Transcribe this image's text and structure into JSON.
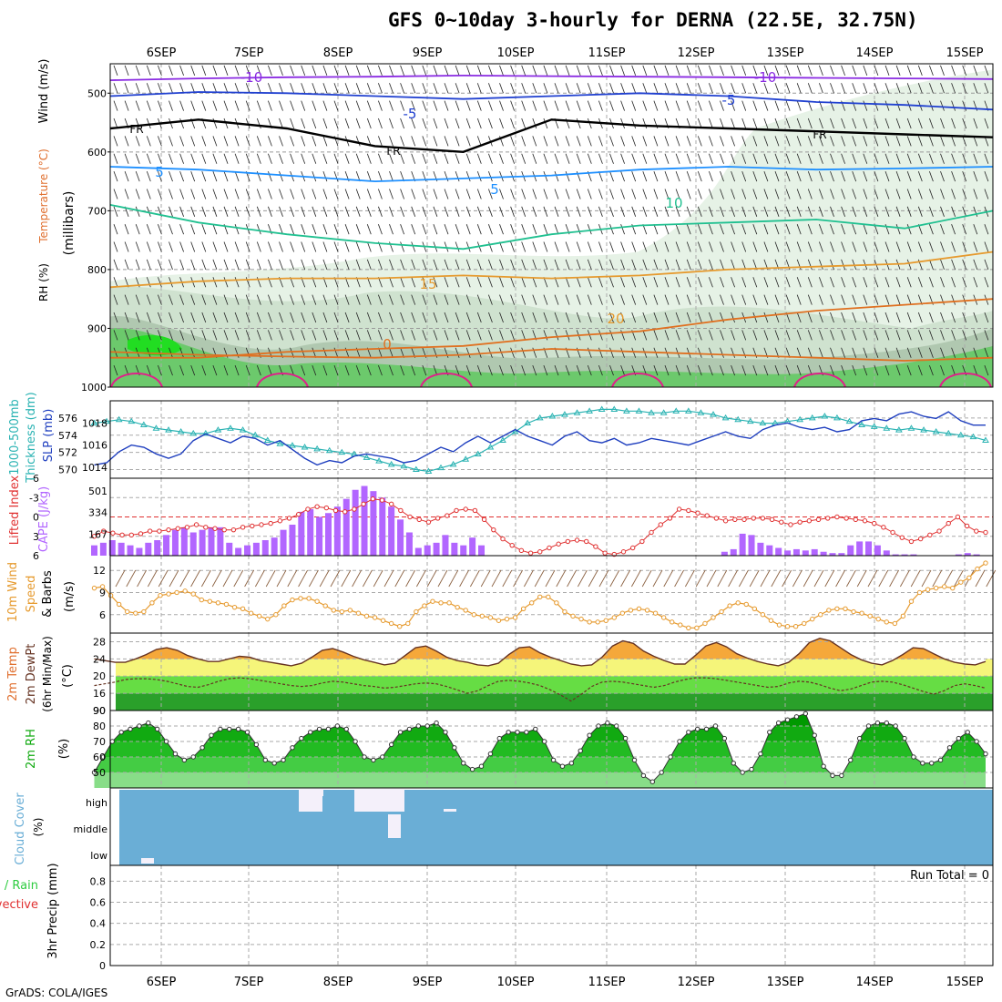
{
  "title": "GFS 0~10day 3-hourly for DERNA (22.5E, 32.75N)",
  "credit": "GrADS: COLA/IGES",
  "dates": [
    "6SEP",
    "7SEP",
    "8SEP",
    "9SEP",
    "10SEP",
    "11SEP",
    "12SEP",
    "13SEP",
    "14SEP",
    "15SEP"
  ],
  "colors": {
    "rh": "#2ecc40",
    "temp": "#e7a23b",
    "wind": "#000000",
    "cloud": "#6aaed6",
    "cape": "#b266ff",
    "li": "#e03030",
    "slp": "#1f3fbf",
    "thick": "#2bb3b3",
    "wspd": "#e69a2e"
  },
  "panel_labels": {
    "upper": [
      "RH (%)",
      "Temperature (°C)",
      "Wind (m/s)",
      "(millibars)"
    ],
    "thick_slp": [
      "1000-500mb",
      "Thickness (dm)",
      "SLP (mb)"
    ],
    "cape_li": [
      "Lifted Index",
      "CAPE (J/kg)"
    ],
    "wind10": [
      "10m Wind",
      "Speed",
      "& Barbs",
      "(m/s)"
    ],
    "temp2m": [
      "2m Temp",
      "2m DewPt",
      "(6hr Min/Max)",
      "(°C)"
    ],
    "rh2m": [
      "2m RH",
      "(%)"
    ],
    "cloud": [
      "Cloud Cover",
      "(%)"
    ],
    "precip": [
      "Total / Rain",
      "Convective",
      "3hr Precip (mm)"
    ]
  },
  "run_total": "Run Total = 0",
  "chart_data": [
    {
      "type": "contour",
      "name": "upper-air",
      "yaxis_ticks": [
        "500",
        "600",
        "700",
        "800",
        "900",
        "1000"
      ],
      "isotherm_labels": [
        "-10",
        "-5",
        "FR",
        "5",
        "10",
        "15",
        "20"
      ],
      "rh_labels": [
        "10",
        "30",
        "50"
      ]
    },
    {
      "type": "line",
      "name": "thickness-slp",
      "left_ticks": [
        "570",
        "572",
        "574",
        "576"
      ],
      "right_ticks": [
        "1014",
        "1016",
        "1018"
      ],
      "series": [
        {
          "name": "Thickness",
          "values": [
            575.4,
            575.6,
            575.8,
            575.6,
            575.2,
            574.8,
            574.6,
            574.4,
            574.2,
            574.2,
            574.6,
            574.8,
            574.6,
            574.0,
            573.4,
            573.0,
            572.8,
            572.6,
            572.4,
            572.2,
            572.0,
            571.8,
            571.4,
            571.0,
            570.6,
            570.4,
            570.0,
            569.8,
            570.2,
            570.6,
            571.2,
            571.8,
            572.6,
            573.4,
            574.4,
            575.4,
            576.0,
            576.2,
            576.4,
            576.6,
            576.8,
            577.0,
            577.0,
            576.8,
            576.8,
            576.6,
            576.6,
            576.8,
            576.8,
            576.6,
            576.4,
            576.0,
            575.8,
            575.6,
            575.4,
            575.4,
            575.6,
            575.8,
            576.0,
            576.2,
            576.0,
            575.6,
            575.2,
            575.0,
            574.8,
            574.6,
            574.8,
            574.6,
            574.4,
            574.2,
            574.0,
            573.8,
            573.4
          ]
        },
        {
          "name": "SLP",
          "values": [
            1014.2,
            1014.4,
            1015.4,
            1016.0,
            1015.8,
            1015.2,
            1014.8,
            1015.2,
            1016.4,
            1017.0,
            1016.6,
            1016.2,
            1016.8,
            1016.6,
            1016.0,
            1016.4,
            1015.6,
            1014.8,
            1014.2,
            1014.6,
            1014.4,
            1015.0,
            1015.2,
            1015.0,
            1014.8,
            1014.4,
            1014.6,
            1015.2,
            1015.8,
            1015.4,
            1016.2,
            1016.8,
            1016.2,
            1016.8,
            1017.4,
            1016.8,
            1016.4,
            1016.0,
            1016.8,
            1017.2,
            1016.4,
            1016.2,
            1016.6,
            1016.0,
            1016.2,
            1016.6,
            1016.4,
            1016.2,
            1016.0,
            1016.4,
            1016.8,
            1017.2,
            1016.8,
            1016.6,
            1017.4,
            1017.8,
            1018.0,
            1017.6,
            1017.4,
            1017.6,
            1017.2,
            1017.4,
            1018.2,
            1018.4,
            1018.2,
            1018.8,
            1019.0,
            1018.6,
            1018.4,
            1019.0,
            1018.2,
            1017.8,
            1017.8
          ]
        }
      ]
    },
    {
      "type": "bar+line",
      "name": "cape-lifted-index",
      "left_ticks": [
        "-6",
        "-3",
        "0",
        "3",
        "6"
      ],
      "right_ticks": [
        "167",
        "334",
        "501"
      ],
      "series": [
        {
          "name": "CAPE",
          "values": [
            80,
            100,
            120,
            100,
            80,
            60,
            100,
            120,
            160,
            200,
            220,
            180,
            200,
            220,
            220,
            100,
            60,
            80,
            100,
            120,
            140,
            200,
            240,
            340,
            360,
            300,
            330,
            380,
            440,
            510,
            540,
            500,
            450,
            380,
            280,
            180,
            60,
            80,
            100,
            160,
            100,
            80,
            140,
            80,
            0,
            0,
            0,
            0,
            0,
            0,
            0,
            0,
            0,
            0,
            0,
            0,
            0,
            0,
            0,
            0,
            0,
            0,
            0,
            0,
            0,
            0,
            0,
            0,
            0,
            0,
            30,
            50,
            170,
            160,
            100,
            80,
            60,
            40,
            50,
            40,
            50,
            30,
            20,
            20,
            80,
            110,
            110,
            80,
            40,
            10,
            10,
            10,
            0,
            0,
            0,
            0,
            10,
            20,
            10,
            0
          ]
        },
        {
          "name": "Lifted Index",
          "values": [
            3.0,
            2.2,
            2.5,
            2.8,
            2.8,
            2.6,
            2.2,
            2.2,
            2.0,
            1.8,
            1.6,
            1.2,
            1.6,
            1.8,
            2.0,
            2.0,
            1.6,
            1.4,
            1.2,
            1.0,
            0.6,
            0.2,
            -0.4,
            -1.2,
            -1.6,
            -1.4,
            -1.0,
            -0.8,
            -1.2,
            -2.0,
            -2.8,
            -2.6,
            -2.0,
            -1.0,
            0.0,
            0.4,
            0.8,
            0.2,
            -0.2,
            -1.0,
            -1.2,
            -1.0,
            0.4,
            2.0,
            3.4,
            4.4,
            5.2,
            5.6,
            5.4,
            4.8,
            4.2,
            3.8,
            3.6,
            3.8,
            4.6,
            5.6,
            5.8,
            5.4,
            4.8,
            3.8,
            2.4,
            1.2,
            0.2,
            -1.2,
            -1.0,
            -0.6,
            -0.2,
            0.2,
            0.6,
            0.4,
            0.4,
            0.2,
            0.2,
            0.4,
            0.8,
            1.2,
            0.8,
            0.6,
            0.4,
            0.2,
            0.0,
            0.2,
            0.4,
            0.6,
            1.0,
            1.6,
            2.4,
            3.2,
            3.8,
            3.4,
            2.8,
            2.2,
            1.0,
            0.0,
            1.4,
            2.2,
            2.4
          ]
        }
      ]
    },
    {
      "type": "line",
      "name": "10m-wind-speed",
      "yaxis_ticks": [
        "6",
        "9",
        "12"
      ],
      "values": [
        9.6,
        9.8,
        8.6,
        7.4,
        6.4,
        6.2,
        6.4,
        7.6,
        8.6,
        8.8,
        9.0,
        9.2,
        8.8,
        8.0,
        7.8,
        7.6,
        7.4,
        7.0,
        6.8,
        6.2,
        5.8,
        5.4,
        6.0,
        7.2,
        8.0,
        8.2,
        8.2,
        7.8,
        7.2,
        6.6,
        6.4,
        6.6,
        6.2,
        5.8,
        5.6,
        5.2,
        4.8,
        4.4,
        4.8,
        6.4,
        7.2,
        7.8,
        7.6,
        7.6,
        7.0,
        6.6,
        6.0,
        5.8,
        5.6,
        5.2,
        5.4,
        5.6,
        6.8,
        7.6,
        8.4,
        8.4,
        7.6,
        6.4,
        5.8,
        5.4,
        5.0,
        5.0,
        5.2,
        5.6,
        6.2,
        6.6,
        6.8,
        6.6,
        6.2,
        5.6,
        5.0,
        4.6,
        4.2,
        4.2,
        4.8,
        5.6,
        6.4,
        7.2,
        7.6,
        7.4,
        6.8,
        6.0,
        5.2,
        4.6,
        4.4,
        4.4,
        4.8,
        5.4,
        6.0,
        6.6,
        6.8,
        6.8,
        6.4,
        6.2,
        5.8,
        5.4,
        5.0,
        4.8,
        5.8,
        7.8,
        9.0,
        9.4,
        9.6,
        9.8,
        9.6,
        10.4,
        11.0,
        12.2,
        13.0
      ]
    },
    {
      "type": "area",
      "name": "2m-temperature",
      "yaxis_ticks": [
        "16",
        "20",
        "24",
        "28"
      ],
      "temp": [
        24.0,
        23.6,
        23.2,
        23.2,
        24.0,
        25.0,
        26.2,
        26.6,
        26.0,
        24.8,
        24.0,
        23.4,
        23.4,
        24.0,
        24.6,
        24.4,
        23.6,
        23.2,
        22.8,
        22.4,
        23.0,
        24.4,
        26.0,
        26.4,
        25.6,
        24.6,
        23.8,
        23.2,
        22.6,
        23.0,
        24.8,
        26.6,
        27.0,
        25.8,
        24.4,
        23.6,
        23.2,
        22.6,
        22.4,
        23.0,
        25.0,
        26.6,
        26.8,
        25.4,
        24.4,
        23.6,
        22.8,
        22.4,
        22.6,
        24.4,
        27.0,
        28.2,
        27.6,
        25.8,
        24.6,
        23.6,
        22.8,
        22.8,
        24.8,
        27.0,
        27.8,
        26.8,
        25.2,
        24.2,
        23.4,
        22.8,
        22.4,
        23.2,
        25.2,
        27.8,
        28.8,
        28.2,
        26.6,
        25.0,
        23.8,
        23.0,
        22.6,
        23.6,
        25.0,
        26.6,
        26.4,
        25.2,
        24.0,
        23.2,
        22.8,
        22.6,
        23.4
      ],
      "dewpoint": [
        17.8,
        18.2,
        18.6,
        19.2,
        19.4,
        19.4,
        19.2,
        18.8,
        18.2,
        17.6,
        17.4,
        18.0,
        18.8,
        19.4,
        19.6,
        19.4,
        19.0,
        18.6,
        18.2,
        17.8,
        17.6,
        17.8,
        18.4,
        18.8,
        18.6,
        18.2,
        17.8,
        17.6,
        17.2,
        17.4,
        17.8,
        18.2,
        18.4,
        18.2,
        17.6,
        16.8,
        16.0,
        16.6,
        17.8,
        18.8,
        19.0,
        18.8,
        18.4,
        17.8,
        16.8,
        15.6,
        14.2,
        15.8,
        17.6,
        18.6,
        18.8,
        18.6,
        18.2,
        17.8,
        17.4,
        17.8,
        18.6,
        19.2,
        19.6,
        19.6,
        19.4,
        19.0,
        18.6,
        18.2,
        17.8,
        17.4,
        17.6,
        18.4,
        18.8,
        18.6,
        18.0,
        17.2,
        16.6,
        17.0,
        17.8,
        18.6,
        18.8,
        18.6,
        18.0,
        17.2,
        16.4,
        15.8,
        16.6,
        17.8,
        18.2,
        17.8,
        17.2
      ]
    },
    {
      "type": "area",
      "name": "2m-relative-humidity",
      "yaxis_ticks": [
        "50",
        "60",
        "70",
        "80",
        "90"
      ],
      "values": [
        50,
        60,
        70,
        76,
        78,
        80,
        82,
        78,
        70,
        62,
        58,
        60,
        66,
        74,
        78,
        78,
        78,
        76,
        68,
        58,
        56,
        58,
        66,
        72,
        76,
        78,
        78,
        80,
        78,
        70,
        60,
        58,
        60,
        68,
        76,
        78,
        80,
        80,
        82,
        76,
        66,
        56,
        52,
        54,
        62,
        72,
        76,
        76,
        76,
        78,
        70,
        58,
        54,
        56,
        64,
        74,
        80,
        82,
        80,
        72,
        58,
        48,
        44,
        50,
        60,
        70,
        76,
        78,
        78,
        80,
        72,
        56,
        50,
        52,
        62,
        76,
        82,
        84,
        86,
        88,
        74,
        54,
        48,
        48,
        58,
        72,
        80,
        82,
        82,
        80,
        72,
        60,
        56,
        56,
        58,
        66,
        72,
        76,
        70,
        62
      ]
    },
    {
      "type": "heatmap",
      "name": "cloud-cover",
      "yaxis_ticks": [
        "high",
        "middle",
        "low"
      ]
    },
    {
      "type": "line",
      "name": "3hr-precip",
      "yaxis_ticks": [
        "0",
        "0.2",
        "0.4",
        "0.6",
        "0.8"
      ],
      "values": []
    }
  ]
}
